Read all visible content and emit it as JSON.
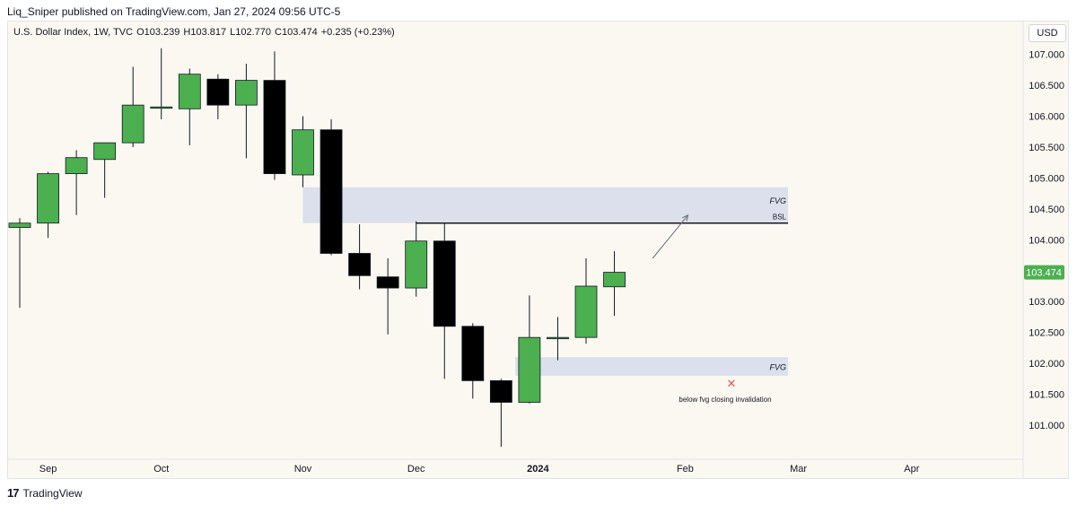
{
  "header": {
    "published_by": "Liq_Sniper published on TradingView.com, Jan 27, 2024 09:56 UTC-5"
  },
  "legend": {
    "symbol": "U.S. Dollar Index, 1W, TVC",
    "open": "O103.239",
    "high": "H103.817",
    "low": "L102.770",
    "close": "C103.474",
    "change": "+0.235 (+0.23%)"
  },
  "currency_button": "USD",
  "footer": {
    "brand": "TradingView"
  },
  "colors": {
    "up": "#4caf50",
    "down": "#000000",
    "zone": "#dcdfec",
    "price_tag": "#4caf50",
    "invalidation": "#ef5350"
  },
  "chart_data": {
    "type": "candlestick",
    "title": "",
    "ylim": [
      100.55,
      107.3
    ],
    "y_ticks": [
      "107.000",
      "106.500",
      "106.000",
      "105.500",
      "105.000",
      "104.500",
      "104.000",
      "103.500",
      "103.000",
      "102.500",
      "102.000",
      "101.500",
      "101.000"
    ],
    "x_ticks": [
      {
        "label": "Sep",
        "bar": 1
      },
      {
        "label": "Oct",
        "bar": 5
      },
      {
        "label": "Nov",
        "bar": 10
      },
      {
        "label": "Dec",
        "bar": 14
      },
      {
        "label": "2024",
        "bar": 18.3,
        "bold": true
      },
      {
        "label": "Feb",
        "bar": 23.5
      },
      {
        "label": "Mar",
        "bar": 27.5
      },
      {
        "label": "Apr",
        "bar": 31.5
      }
    ],
    "candles": [
      {
        "o": 104.2,
        "h": 104.35,
        "l": 102.9,
        "c": 104.27
      },
      {
        "o": 104.27,
        "h": 105.1,
        "l": 104.03,
        "c": 105.07
      },
      {
        "o": 105.07,
        "h": 105.45,
        "l": 104.4,
        "c": 105.33
      },
      {
        "o": 105.3,
        "h": 105.55,
        "l": 104.68,
        "c": 105.57
      },
      {
        "o": 105.57,
        "h": 106.8,
        "l": 105.5,
        "c": 106.18
      },
      {
        "o": 106.15,
        "h": 107.1,
        "l": 105.95,
        "c": 106.15
      },
      {
        "o": 106.12,
        "h": 106.77,
        "l": 105.53,
        "c": 106.68
      },
      {
        "o": 106.6,
        "h": 106.68,
        "l": 105.95,
        "c": 106.18
      },
      {
        "o": 106.18,
        "h": 106.85,
        "l": 105.32,
        "c": 106.58
      },
      {
        "o": 106.58,
        "h": 107.05,
        "l": 104.97,
        "c": 105.07
      },
      {
        "o": 105.05,
        "h": 106.0,
        "l": 104.85,
        "c": 105.78
      },
      {
        "o": 105.78,
        "h": 105.95,
        "l": 103.75,
        "c": 103.78
      },
      {
        "o": 103.78,
        "h": 104.25,
        "l": 103.2,
        "c": 103.42
      },
      {
        "o": 103.4,
        "h": 103.7,
        "l": 102.47,
        "c": 103.22
      },
      {
        "o": 103.22,
        "h": 104.3,
        "l": 103.08,
        "c": 103.98
      },
      {
        "o": 103.98,
        "h": 104.28,
        "l": 101.75,
        "c": 102.6
      },
      {
        "o": 102.6,
        "h": 102.65,
        "l": 101.43,
        "c": 101.72
      },
      {
        "o": 101.72,
        "h": 101.75,
        "l": 100.65,
        "c": 101.37
      },
      {
        "o": 101.37,
        "h": 103.1,
        "l": 101.35,
        "c": 102.42
      },
      {
        "o": 102.42,
        "h": 102.75,
        "l": 102.05,
        "c": 102.42
      },
      {
        "o": 102.42,
        "h": 103.7,
        "l": 102.32,
        "c": 103.25
      },
      {
        "o": 103.239,
        "h": 103.817,
        "l": 102.77,
        "c": 103.474
      }
    ],
    "last_price": "103.474",
    "zones": [
      {
        "label": "FVG",
        "from_bar": 10,
        "y_top": 104.85,
        "y_bottom": 104.27
      },
      {
        "label": "FVG",
        "from_bar": 17.5,
        "y_top": 102.1,
        "y_bottom": 101.8
      }
    ],
    "bsl_line": {
      "label": "BSL",
      "from_bar": 14,
      "to_bar": 27.5,
      "y": 104.27
    },
    "arrow": {
      "from_bar": 22.35,
      "from_y": 103.7,
      "to_bar": 23.6,
      "to_y": 104.4
    },
    "annotation": {
      "text": "below fvg closing invalidation",
      "bar": 25,
      "y": 101.65,
      "marker": "✕"
    },
    "bar_spacing": 31.55,
    "first_bar_x_ref": 22
  }
}
